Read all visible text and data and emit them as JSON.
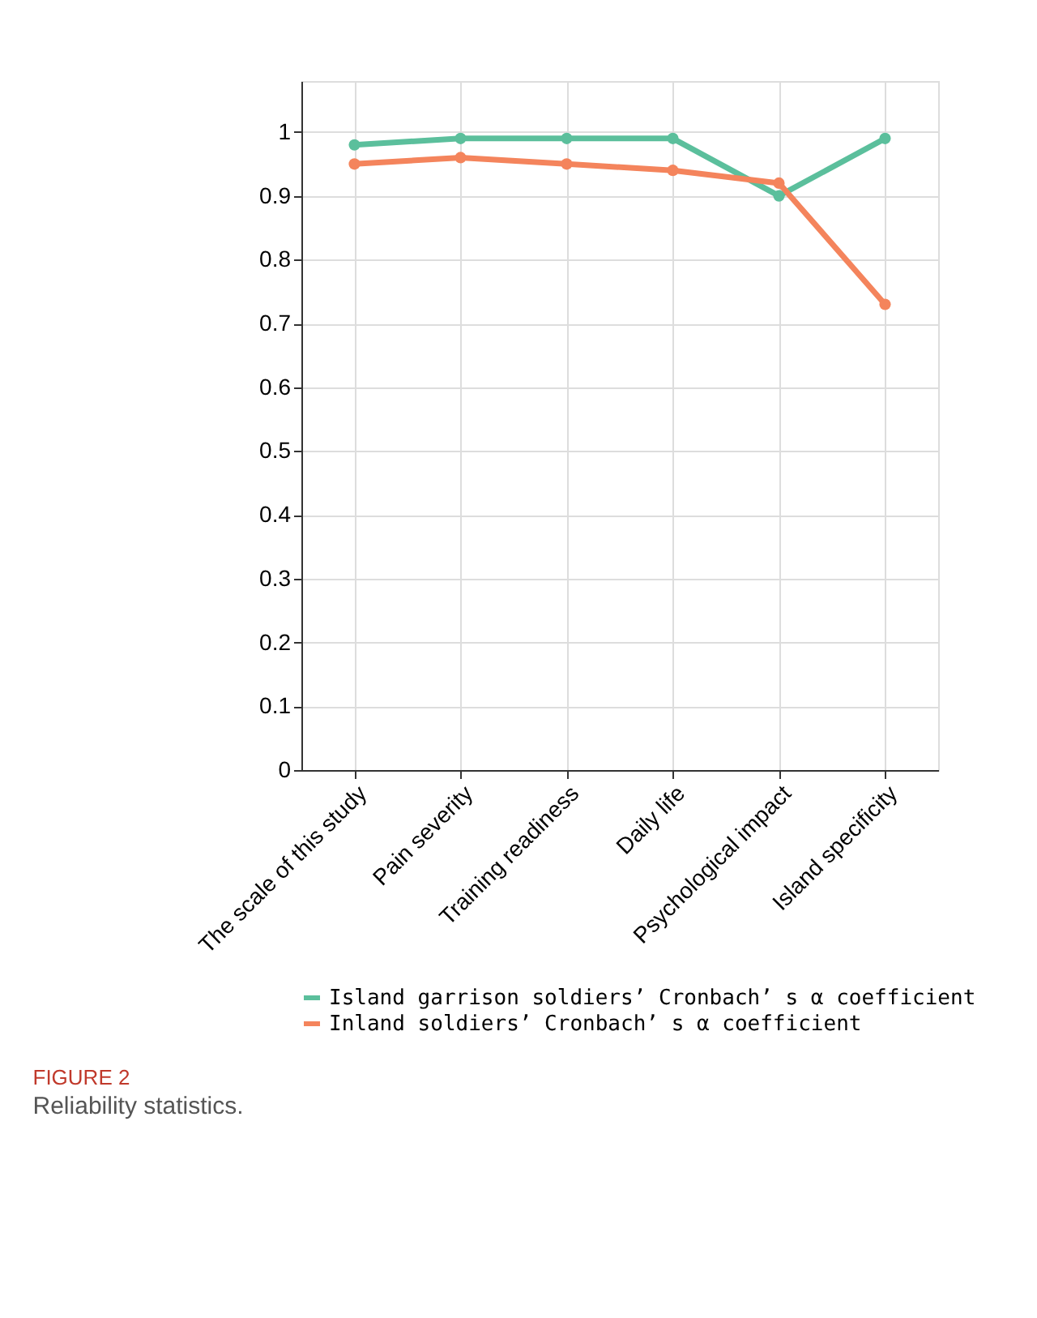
{
  "chart_data": {
    "type": "line",
    "categories": [
      "The scale of this study",
      "Pain severity",
      "Training readiness",
      "Daily life",
      "Psychological impact",
      "Island specificity"
    ],
    "series": [
      {
        "name": "Island garrison soldiers’ Cronbach’ s α coefficient",
        "color": "#5bbf9c",
        "values": [
          0.98,
          0.99,
          0.99,
          0.99,
          0.9,
          0.99
        ]
      },
      {
        "name": "Inland soldiers’ Cronbach’ s α coefficient",
        "color": "#f4845c",
        "values": [
          0.95,
          0.96,
          0.95,
          0.94,
          0.92,
          0.73
        ]
      }
    ],
    "ylim": [
      0,
      1.08
    ],
    "yticks": [
      0,
      0.1,
      0.2,
      0.3,
      0.4,
      0.5,
      0.6,
      0.7,
      0.8,
      0.9,
      1
    ],
    "grid": true,
    "legend": "bottom",
    "marker": "circle",
    "line_style": "solid",
    "annotations": [
      "FIGURE 2",
      "Reliability statistics."
    ]
  }
}
